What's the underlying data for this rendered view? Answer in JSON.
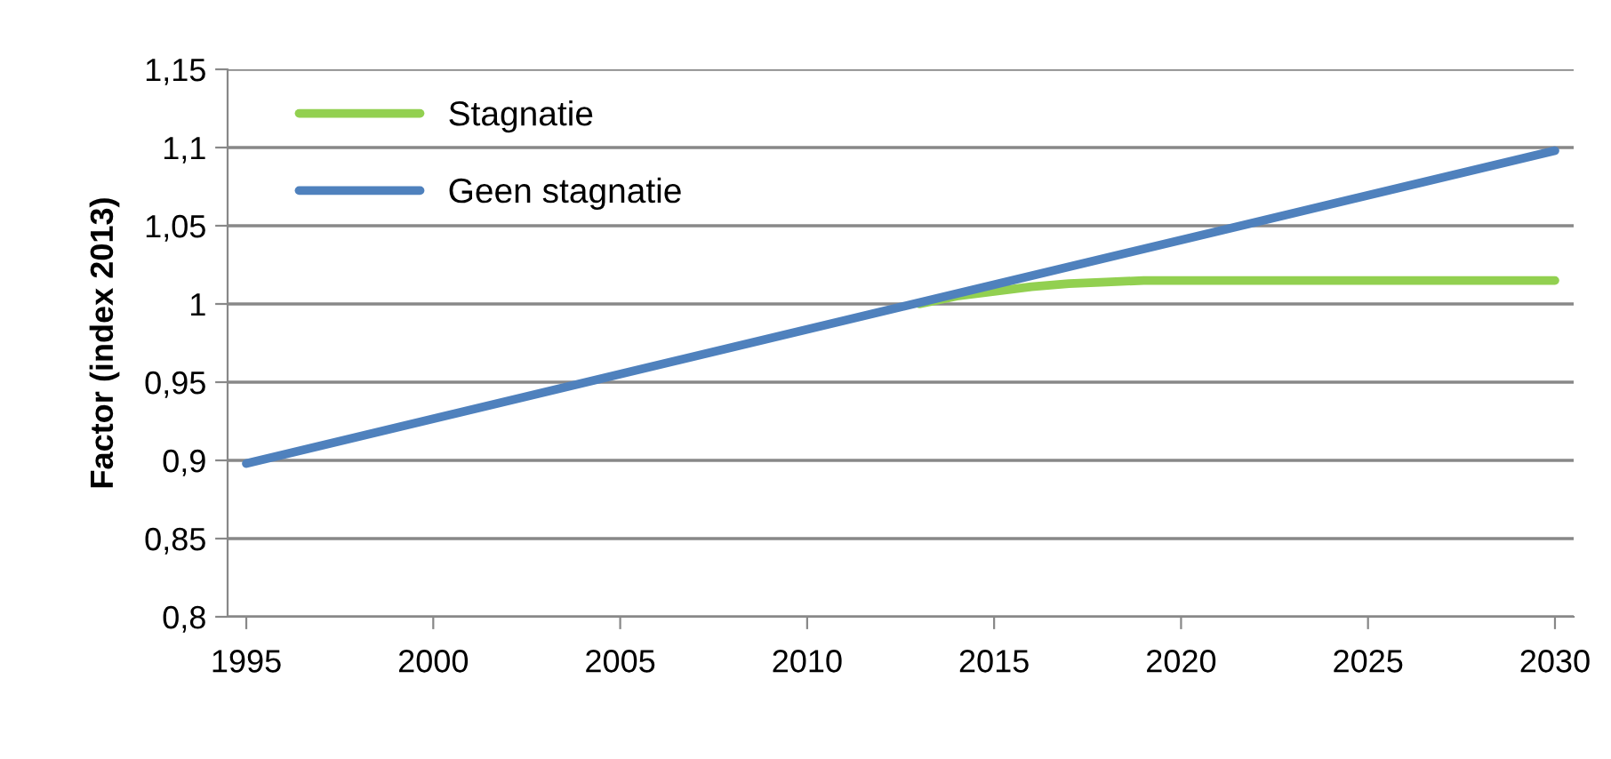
{
  "chart_data": {
    "type": "line",
    "ylabel": "Factor (index 2013)",
    "series": [
      {
        "name": "Stagnatie",
        "color": "#92d050",
        "x": [
          2013,
          2014,
          2015,
          2016,
          2017,
          2018,
          2019,
          2020,
          2030
        ],
        "values": [
          1.0,
          1.005,
          1.008,
          1.011,
          1.013,
          1.014,
          1.015,
          1.015,
          1.015
        ]
      },
      {
        "name": "Geen stagnatie",
        "color": "#4f81bd",
        "x": [
          1995,
          2030
        ],
        "values": [
          0.898,
          1.098
        ]
      }
    ],
    "xlim": [
      1994.5,
      2030.5
    ],
    "xticks": [
      1995,
      2000,
      2005,
      2010,
      2015,
      2020,
      2025,
      2030
    ],
    "ylim": [
      0.8,
      1.15
    ],
    "yticks": [
      {
        "value": 0.8,
        "label": "0,8"
      },
      {
        "value": 0.85,
        "label": "0,85"
      },
      {
        "value": 0.9,
        "label": "0,9"
      },
      {
        "value": 0.95,
        "label": "0,95"
      },
      {
        "value": 1,
        "label": "1"
      },
      {
        "value": 1.05,
        "label": "1,05"
      },
      {
        "value": 1.1,
        "label": "1,1"
      },
      {
        "value": 1.15,
        "label": "1,15"
      }
    ],
    "grid": "y",
    "legend": "top left",
    "marker": "none",
    "line_style": "solid"
  }
}
